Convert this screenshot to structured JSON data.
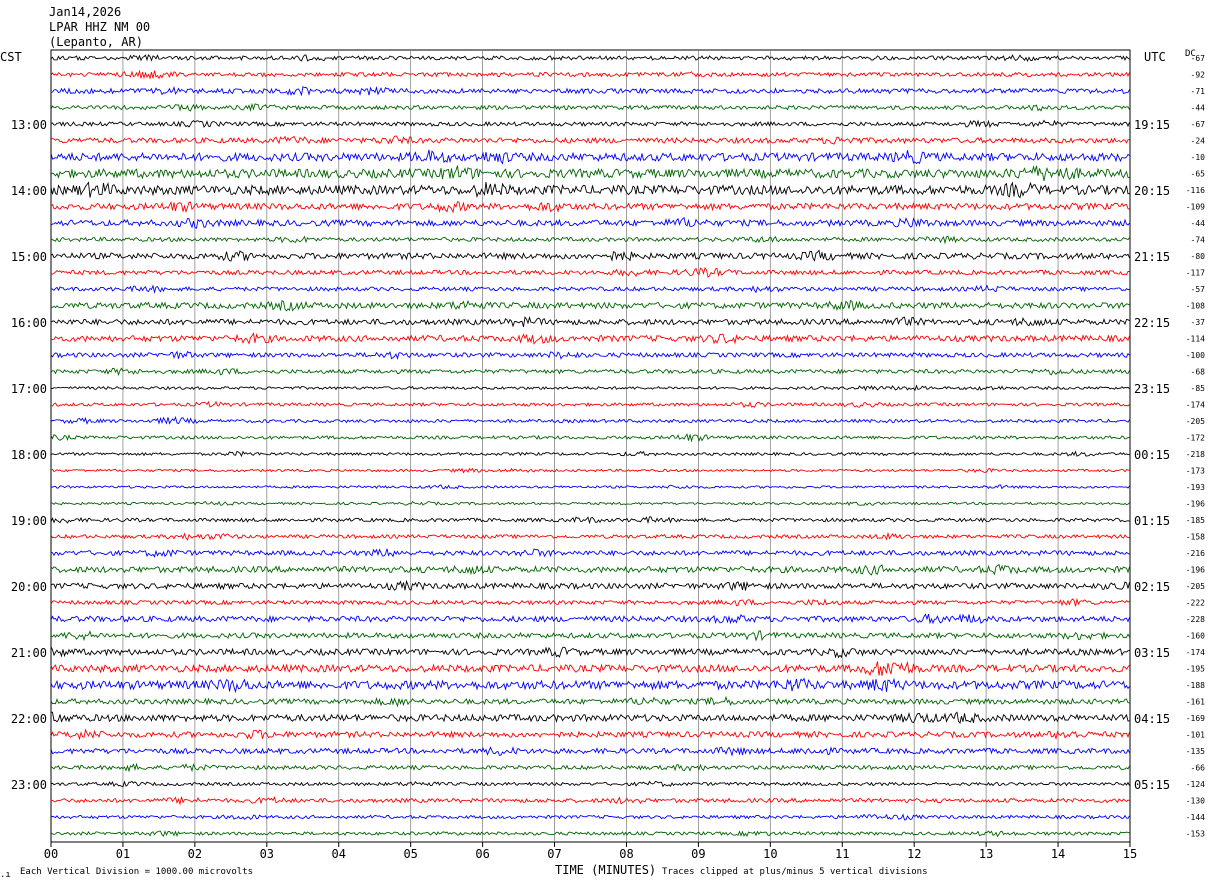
{
  "header": {
    "date": "Jan14,2026",
    "station": "LPAR HHZ NM 00",
    "location": "(Lepanto, AR)"
  },
  "left_tz": "CST",
  "right_tz": "UTC",
  "dc_label": "DC",
  "footer": {
    "scale": "Each Vertical Division = 1000.00 microvolts",
    "xlabel": "TIME (MINUTES)",
    "clip": "Traces clipped at plus/minus 5 vertical divisions"
  },
  "colors": {
    "trace_cycle": [
      "#000000",
      "#ff0000",
      "#0000ff",
      "#006400"
    ],
    "grid": "#888888"
  },
  "chart_data": {
    "type": "line",
    "title": "",
    "xlabel": "TIME (MINUTES)",
    "x_ticks": [
      "00",
      "01",
      "02",
      "03",
      "04",
      "05",
      "06",
      "07",
      "08",
      "09",
      "10",
      "11",
      "12",
      "13",
      "14",
      "15"
    ],
    "xlim": [
      0,
      15
    ],
    "rows": 48,
    "left_hour_labels": [
      "13:00",
      "14:00",
      "15:00",
      "16:00",
      "17:00",
      "18:00",
      "19:00",
      "20:00",
      "21:00",
      "22:00",
      "23:00"
    ],
    "right_hour_labels": [
      "19:15",
      "20:15",
      "21:15",
      "22:15",
      "23:15",
      "00:15",
      "01:15",
      "02:15",
      "03:15",
      "04:15",
      "05:15"
    ],
    "dc_offsets": [
      -67,
      -92,
      -71,
      -44,
      -67,
      -24,
      -10,
      -65,
      -116,
      -109,
      -44,
      -74,
      -80,
      -117,
      -57,
      -108,
      -37,
      -114,
      -100,
      -68,
      -85,
      -174,
      -205,
      -172,
      -218,
      -173,
      -193,
      -196,
      -185,
      -158,
      -216,
      -196,
      -205,
      -222,
      -228,
      -160,
      -174,
      -195,
      -188,
      -161,
      -169,
      -101,
      -135,
      -66,
      -124,
      -130,
      -144,
      -153
    ],
    "row_amplitude": [
      2.0,
      2.0,
      2.4,
      2.0,
      2.0,
      2.6,
      4.0,
      4.4,
      4.6,
      3.2,
      3.0,
      2.0,
      3.0,
      2.2,
      2.0,
      3.0,
      2.8,
      3.0,
      2.2,
      2.0,
      1.4,
      1.6,
      1.6,
      1.6,
      1.4,
      1.2,
      1.2,
      1.2,
      1.8,
      1.8,
      2.4,
      3.0,
      2.8,
      2.0,
      2.8,
      2.6,
      3.0,
      3.6,
      4.2,
      2.6,
      3.4,
      2.8,
      2.6,
      2.0,
      1.6,
      2.0,
      1.6,
      1.6
    ]
  }
}
